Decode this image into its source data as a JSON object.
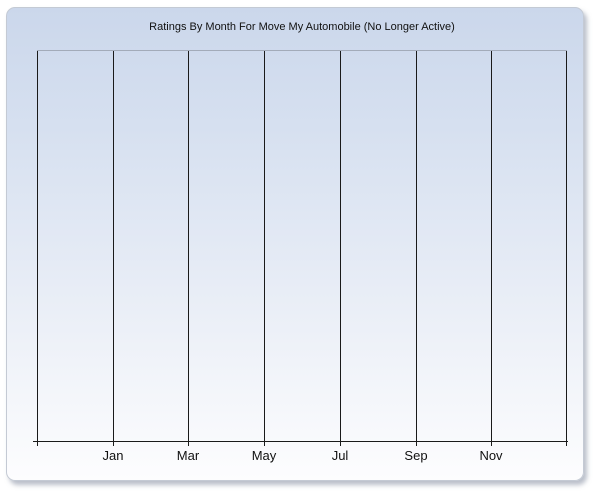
{
  "chart_data": {
    "type": "line",
    "title": "Ratings By Month For Move My Automobile (No Longer Active)",
    "xlabel": "",
    "ylabel": "",
    "x_gridline_labels": [
      "",
      "Jan",
      "Mar",
      "May",
      "Jul",
      "Sep",
      "Nov",
      ""
    ],
    "x_axis_month_labels": [
      "Jan",
      "Mar",
      "May",
      "Jul",
      "Sep",
      "Nov"
    ],
    "series": [],
    "data_points_visible": 0,
    "y_axis": {
      "tick_labels": [],
      "horizontal_gridlines": false
    },
    "grid": {
      "vertical": true,
      "horizontal": false
    },
    "legend": {
      "visible": false
    }
  },
  "colors": {
    "page_background": "#ffffff",
    "panel_gradient_top": "#cbd7eb",
    "panel_gradient_bottom": "#fdfdfe",
    "panel_border": "#c4cad4",
    "plot_top_border": "#a3abb9",
    "gridline": "#1a1a1a",
    "axis": "#1a1a1a",
    "title_text": "#111111",
    "label_text": "#111111"
  }
}
